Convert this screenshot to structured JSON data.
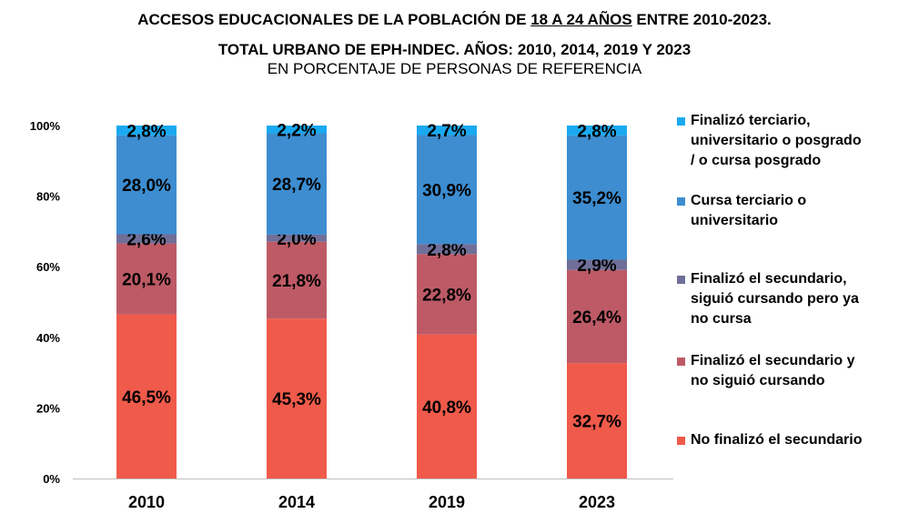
{
  "title": {
    "line1_pre": "ACCESOS EDUCACIONALES DE LA POBLACIÓN DE ",
    "line1_underlined": "18 A 24 AÑOS",
    "line1_post": " ENTRE 2010-2023.",
    "line2": "TOTAL URBANO DE EPH-INDEC. AÑOS: 2010, 2014, 2019 Y 2023",
    "line3": "EN PORCENTAJE DE PERSONAS DE REFERENCIA"
  },
  "chart_data": {
    "type": "bar",
    "stacked": true,
    "categories": [
      "2010",
      "2014",
      "2019",
      "2023"
    ],
    "ylim": [
      0,
      100
    ],
    "yticks": [
      "0%",
      "20%",
      "40%",
      "60%",
      "80%",
      "100%"
    ],
    "grid": false,
    "legend_position": "right",
    "series": [
      {
        "name": "No finalizó el secundario",
        "color": "#f05a4a",
        "values": [
          46.5,
          45.3,
          40.8,
          32.7
        ],
        "labels": [
          "46,5%",
          "45,3%",
          "40,8%",
          "32,7%"
        ]
      },
      {
        "name": "Finalizó el secundario y no siguió cursando",
        "color": "#bd5a66",
        "values": [
          20.1,
          21.8,
          22.8,
          26.4
        ],
        "labels": [
          "20,1%",
          "21,8%",
          "22,8%",
          "26,4%"
        ]
      },
      {
        "name": "Finalizó el secundario, siguió cursando pero ya no cursa",
        "color": "#6f6f98",
        "values": [
          2.6,
          2.0,
          2.8,
          2.9
        ],
        "labels": [
          "2,6%",
          "2,0%",
          "2,8%",
          "2,9%"
        ]
      },
      {
        "name": "Cursa terciario o universitario",
        "color": "#3d8dd0",
        "values": [
          28.0,
          28.7,
          30.9,
          35.2
        ],
        "labels": [
          "28,0%",
          "28,7%",
          "30,9%",
          "35,2%"
        ]
      },
      {
        "name": "Finalizó terciario, universitario o posgrado / o cursa posgrado",
        "color": "#1aa9f0",
        "values": [
          2.8,
          2.2,
          2.7,
          2.8
        ],
        "labels": [
          "2,8%",
          "2,2%",
          "2,7%",
          "2,8%"
        ]
      }
    ]
  },
  "legend": [
    {
      "lines": [
        "Finalizó terciario,",
        "universitario o posgrado",
        "/ o cursa posgrado"
      ],
      "color": "#1aa9f0"
    },
    {
      "lines": [
        "Cursa terciario o",
        "universitario"
      ],
      "color": "#3d8dd0"
    },
    {
      "lines": [
        "Finalizó el secundario,",
        "siguió cursando pero ya",
        "no cursa"
      ],
      "color": "#6f6f98"
    },
    {
      "lines": [
        "Finalizó el secundario y",
        "no siguió cursando"
      ],
      "color": "#bd5a66"
    },
    {
      "lines": [
        "No finalizó el secundario"
      ],
      "color": "#f05a4a"
    }
  ]
}
